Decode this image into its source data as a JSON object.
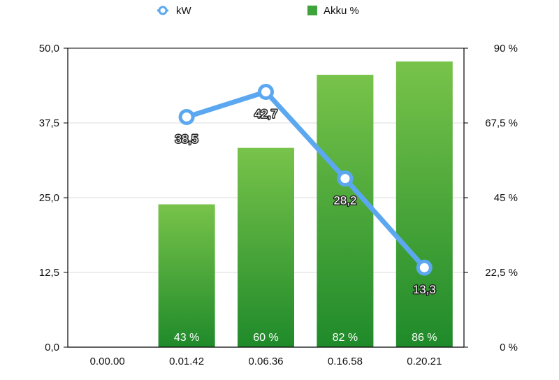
{
  "chart_data": {
    "type": "bar",
    "categories": [
      "0.00.00",
      "0.01.42",
      "0.06.36",
      "0.16.58",
      "0.20.21"
    ],
    "series": [
      {
        "name": "Akku %",
        "kind": "bar",
        "axis": "right",
        "values": [
          0,
          43,
          60,
          82,
          86
        ],
        "labels": [
          "",
          "43 %",
          "60 %",
          "82 %",
          "86 %"
        ],
        "color": "#3da33a"
      },
      {
        "name": "kW",
        "kind": "line",
        "axis": "left",
        "values": [
          null,
          38.5,
          42.7,
          28.2,
          13.3
        ],
        "labels": [
          "",
          "38,5",
          "42,7",
          "28,2",
          "13,3"
        ],
        "color": "#5ba8f0"
      }
    ],
    "y_left": {
      "range": [
        0,
        50
      ],
      "ticks": [
        "0,0",
        "12,5",
        "25,0",
        "37,5",
        "50,0"
      ]
    },
    "y_right": {
      "range": [
        0,
        90
      ],
      "ticks": [
        "0 %",
        "22,5 %",
        "45 %",
        "67,5 %",
        "90 %"
      ]
    },
    "grid": true,
    "legend": {
      "position": "top-center",
      "items": [
        "kW",
        "Akku %"
      ]
    },
    "title": "",
    "xlabel": "",
    "ylabel": ""
  }
}
